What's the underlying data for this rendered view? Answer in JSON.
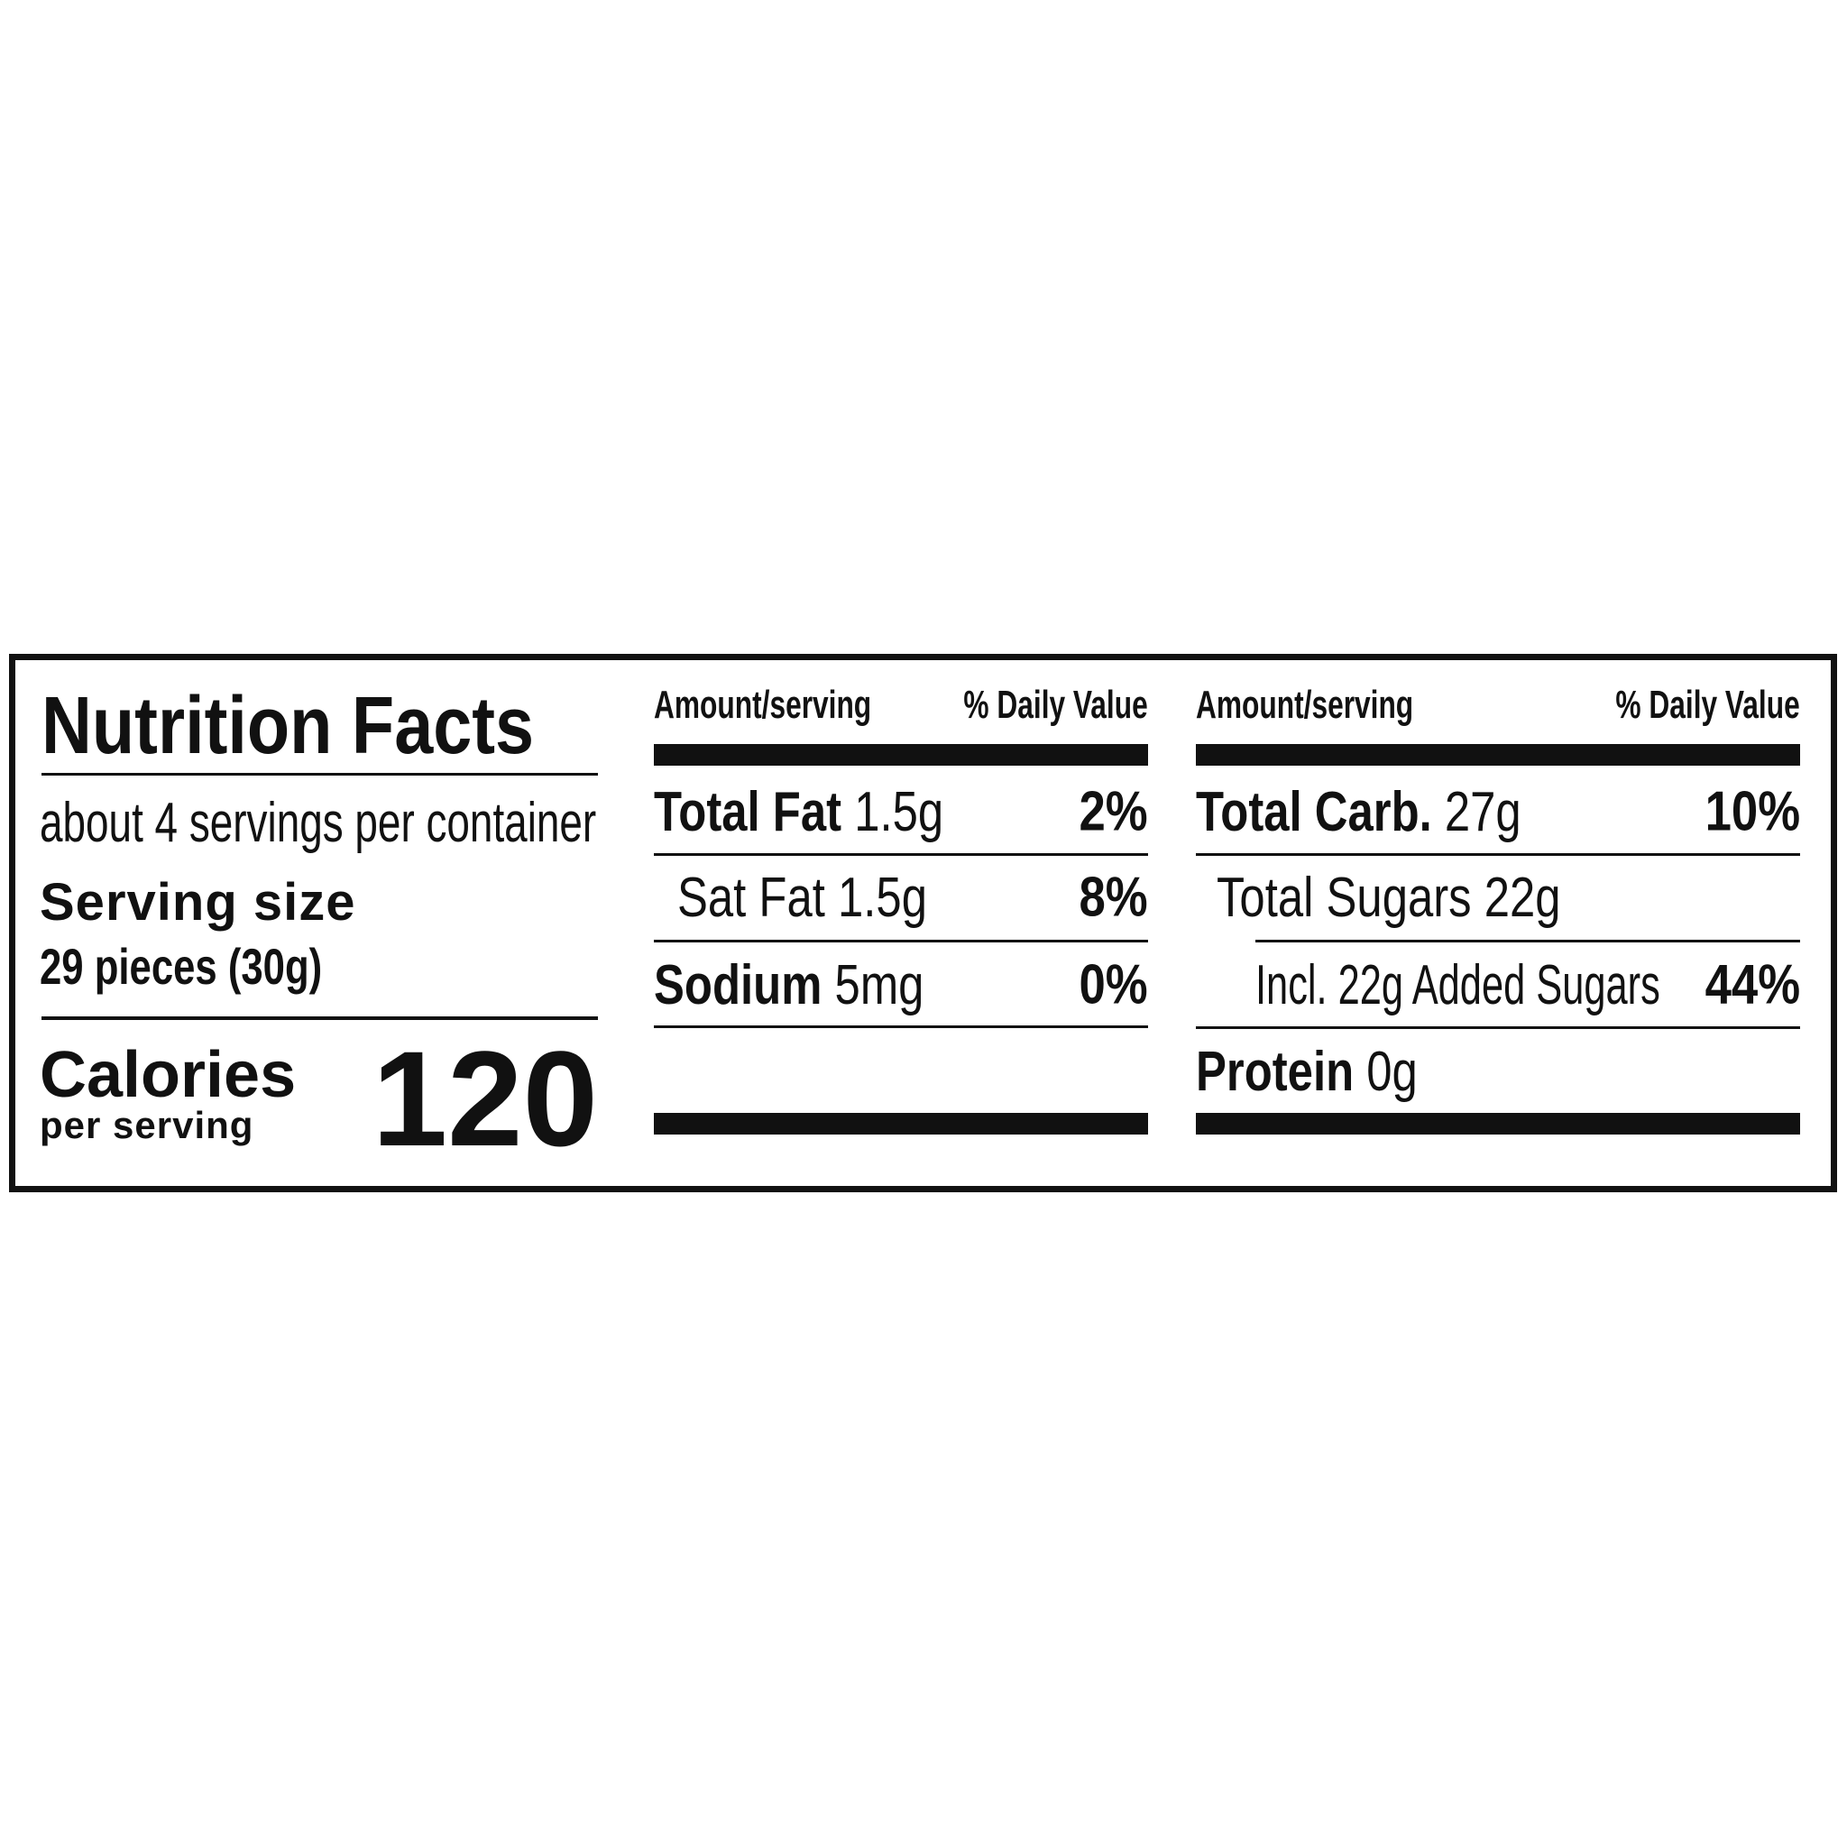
{
  "title": "Nutrition Facts",
  "servings_per_container": "about 4 servings per container",
  "serving_size_label": "Serving size",
  "serving_size_value": "29 pieces (30g)",
  "calories_label": "Calories",
  "calories_sublabel": "per serving",
  "calories_value": "120",
  "columns": [
    {
      "amount_header": "Amount/serving",
      "dv_header": "% Daily Value",
      "rows": [
        {
          "label": "Total Fat",
          "amount": "1.5g",
          "dv": "2%"
        },
        {
          "label": "Sat Fat",
          "amount": "1.5g",
          "dv": "8%"
        },
        {
          "label": "Sodium",
          "amount": "5mg",
          "dv": "0%"
        }
      ]
    },
    {
      "amount_header": "Amount/serving",
      "dv_header": "% Daily Value",
      "rows": [
        {
          "label": "Total Carb.",
          "amount": "27g",
          "dv": "10%"
        },
        {
          "label": "Total Sugars",
          "amount": "22g",
          "dv": ""
        },
        {
          "label": "Incl. 22g Added Sugars",
          "amount": "",
          "dv": "44%"
        },
        {
          "label": "Protein",
          "amount": "0g",
          "dv": ""
        }
      ]
    }
  ]
}
